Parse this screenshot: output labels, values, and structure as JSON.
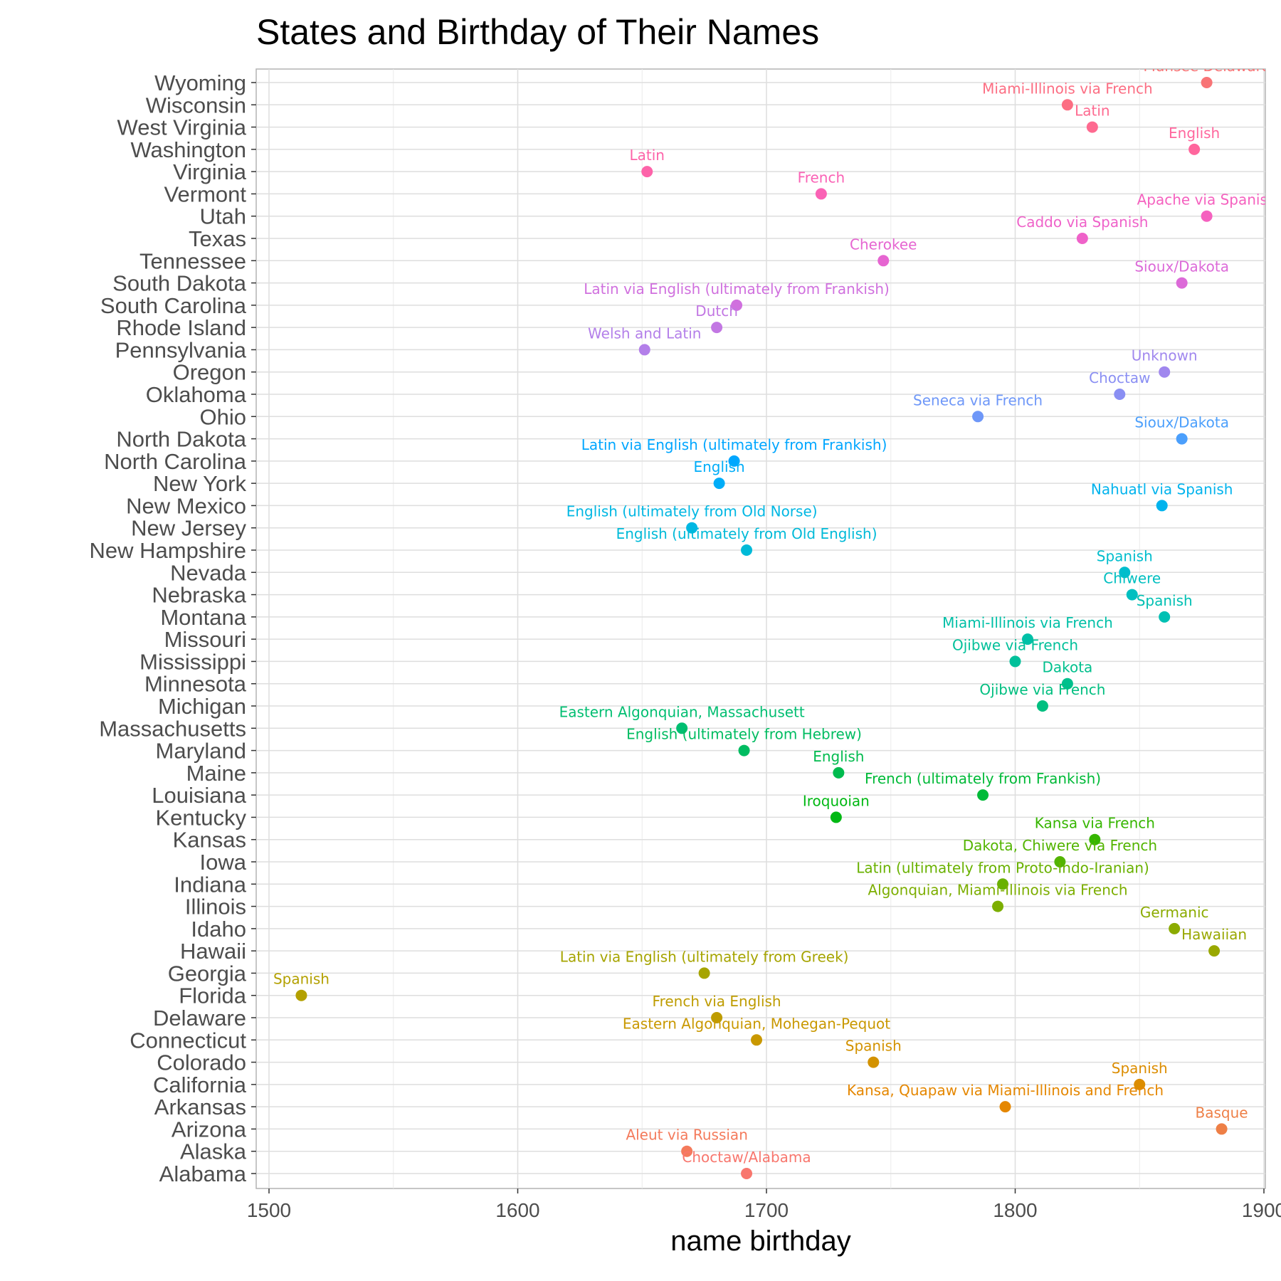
{
  "chart_data": {
    "type": "scatter",
    "title": "States and Birthday of Their Names",
    "xlabel": "name birthday",
    "ylabel": "",
    "xlim": [
      1500,
      1900
    ],
    "x_ticks": [
      1500,
      1600,
      1700,
      1800,
      1900
    ],
    "grid": true,
    "legend": "none",
    "points": [
      {
        "state": "Alabama",
        "x": 1692,
        "label": "Choctaw/Alabama",
        "color": "#F8766D"
      },
      {
        "state": "Alaska",
        "x": 1668,
        "label": "Aleut via Russian",
        "color": "#F47A5B"
      },
      {
        "state": "Arizona",
        "x": 1883,
        "label": "Basque",
        "color": "#EE7F46"
      },
      {
        "state": "Arkansas",
        "x": 1796,
        "label": "Kansa, Quapaw via Miami-Illinois and French",
        "color": "#E58700"
      },
      {
        "state": "California",
        "x": 1850,
        "label": "Spanish",
        "color": "#DC8D00"
      },
      {
        "state": "Colorado",
        "x": 1743,
        "label": "Spanish",
        "color": "#D39200"
      },
      {
        "state": "Connecticut",
        "x": 1696,
        "label": "Eastern Algonquian, Mohegan-Pequot",
        "color": "#C99800"
      },
      {
        "state": "Delaware",
        "x": 1680,
        "label": "French via English",
        "color": "#BE9C00"
      },
      {
        "state": "Florida",
        "x": 1513,
        "label": "Spanish",
        "color": "#B3A000"
      },
      {
        "state": "Georgia",
        "x": 1675,
        "label": "Latin via English (ultimately from Greek)",
        "color": "#A6A400"
      },
      {
        "state": "Hawaii",
        "x": 1880,
        "label": "Hawaiian",
        "color": "#99A800"
      },
      {
        "state": "Idaho",
        "x": 1864,
        "label": "Germanic",
        "color": "#8BAB00"
      },
      {
        "state": "Illinois",
        "x": 1793,
        "label": "Algonquian, Miami-Illinois via French",
        "color": "#7CAE00"
      },
      {
        "state": "Indiana",
        "x": 1795,
        "label": "Latin (ultimately from Proto-Indo-Iranian)",
        "color": "#69B100"
      },
      {
        "state": "Iowa",
        "x": 1818,
        "label": "Dakota, Chiwere via French",
        "color": "#53B400"
      },
      {
        "state": "Kansas",
        "x": 1832,
        "label": "Kansa via French",
        "color": "#36B600"
      },
      {
        "state": "Kentucky",
        "x": 1728,
        "label": "Iroquoian",
        "color": "#00B813"
      },
      {
        "state": "Louisiana",
        "x": 1787,
        "label": "French (ultimately from Frankish)",
        "color": "#00BA38"
      },
      {
        "state": "Maine",
        "x": 1729,
        "label": "English",
        "color": "#00BB4E"
      },
      {
        "state": "Maryland",
        "x": 1691,
        "label": "English (ultimately from Hebrew)",
        "color": "#00BC61"
      },
      {
        "state": "Massachusetts",
        "x": 1666,
        "label": "Eastern Algonquian, Massachusett",
        "color": "#00BE71"
      },
      {
        "state": "Michigan",
        "x": 1811,
        "label": "Ojibwe via French",
        "color": "#00BF80"
      },
      {
        "state": "Minnesota",
        "x": 1821,
        "label": "Dakota",
        "color": "#00C08D"
      },
      {
        "state": "Mississippi",
        "x": 1800,
        "label": "Ojibwe via French",
        "color": "#00C09A"
      },
      {
        "state": "Missouri",
        "x": 1805,
        "label": "Miami-Illinois via French",
        "color": "#00C0A7"
      },
      {
        "state": "Montana",
        "x": 1860,
        "label": "Spanish",
        "color": "#00C0B3"
      },
      {
        "state": "Nebraska",
        "x": 1847,
        "label": "Chiwere",
        "color": "#00BFC0"
      },
      {
        "state": "Nevada",
        "x": 1844,
        "label": "Spanish",
        "color": "#00BDCD"
      },
      {
        "state": "New Hampshire",
        "x": 1692,
        "label": "English (ultimately from Old English)",
        "color": "#00BAD8"
      },
      {
        "state": "New Jersey",
        "x": 1670,
        "label": "English (ultimately from Old Norse)",
        "color": "#00B7E3"
      },
      {
        "state": "New Mexico",
        "x": 1859,
        "label": "Nahuatl via Spanish",
        "color": "#00B3ED"
      },
      {
        "state": "New York",
        "x": 1681,
        "label": "English",
        "color": "#00ADF8"
      },
      {
        "state": "North Carolina",
        "x": 1687,
        "label": "Latin via English (ultimately from Frankish)",
        "color": "#00A6FF"
      },
      {
        "state": "North Dakota",
        "x": 1867,
        "label": "Sioux/Dakota",
        "color": "#4B9FFC"
      },
      {
        "state": "Ohio",
        "x": 1785,
        "label": "Seneca via French",
        "color": "#6E97F8"
      },
      {
        "state": "Oklahoma",
        "x": 1842,
        "label": "Choctaw",
        "color": "#8A8FF3"
      },
      {
        "state": "Oregon",
        "x": 1860,
        "label": "Unknown",
        "color": "#A087EE"
      },
      {
        "state": "Pennsylvania",
        "x": 1651,
        "label": "Welsh and Latin",
        "color": "#B37FE9"
      },
      {
        "state": "Rhode Island",
        "x": 1680,
        "label": "Dutch",
        "color": "#C277E3"
      },
      {
        "state": "South Carolina",
        "x": 1688,
        "label": "Latin via English (ultimately from Frankish)",
        "color": "#D070DE"
      },
      {
        "state": "South Dakota",
        "x": 1867,
        "label": "Sioux/Dakota",
        "color": "#DC6AD8"
      },
      {
        "state": "Tennessee",
        "x": 1747,
        "label": "Cherokee",
        "color": "#E665D1"
      },
      {
        "state": "Texas",
        "x": 1827,
        "label": "Caddo via Spanish",
        "color": "#EF62C9"
      },
      {
        "state": "Utah",
        "x": 1877,
        "label": "Apache via Spanish",
        "color": "#F561BF"
      },
      {
        "state": "Vermont",
        "x": 1722,
        "label": "French",
        "color": "#FA62B5"
      },
      {
        "state": "Virginia",
        "x": 1652,
        "label": "Latin",
        "color": "#FD63A9"
      },
      {
        "state": "Washington",
        "x": 1872,
        "label": "English",
        "color": "#FF669D"
      },
      {
        "state": "West Virginia",
        "x": 1831,
        "label": "Latin",
        "color": "#FE6A90"
      },
      {
        "state": "Wisconsin",
        "x": 1821,
        "label": "Miami-Illinois via French",
        "color": "#FC6E83"
      },
      {
        "state": "Wyoming",
        "x": 1877,
        "label": "Munsee Delaware",
        "color": "#F87476"
      }
    ]
  }
}
